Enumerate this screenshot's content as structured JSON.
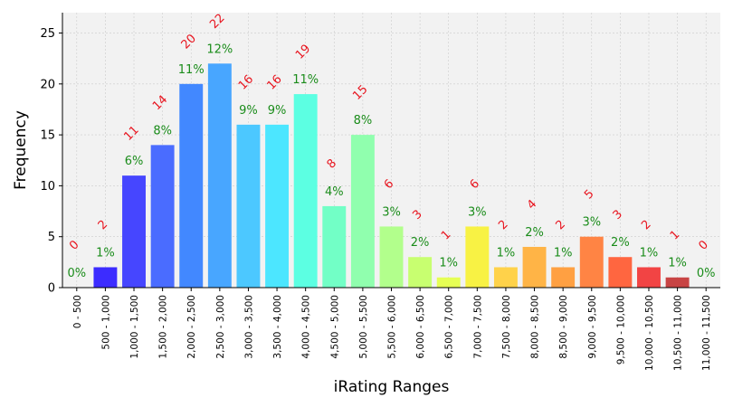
{
  "chart_data": {
    "type": "bar",
    "title": "",
    "xlabel": "iRating Ranges",
    "ylabel": "Frequency",
    "ylim": [
      0,
      27
    ],
    "yticks": [
      0,
      5,
      10,
      15,
      20,
      25
    ],
    "grid": true,
    "categories": [
      "0 - 500",
      "500 - 1,000",
      "1,000 - 1,500",
      "1,500 - 2,000",
      "2,000 - 2,500",
      "2,500 - 3,000",
      "3,000 - 3,500",
      "3,500 - 4,000",
      "4,000 - 4,500",
      "4,500 - 5,000",
      "5,000 - 5,500",
      "5,500 - 6,000",
      "6,000 - 6,500",
      "6,500 - 7,000",
      "7,000 - 7,500",
      "7,500 - 8,000",
      "8,000 - 8,500",
      "8,500 - 9,000",
      "9,000 - 9,500",
      "9,500 - 10,000",
      "10,000 - 10,500",
      "10,500 - 11,000",
      "11,000 - 11,500"
    ],
    "values": [
      0,
      2,
      11,
      14,
      20,
      22,
      16,
      16,
      19,
      8,
      15,
      6,
      3,
      1,
      6,
      2,
      4,
      2,
      5,
      3,
      2,
      1,
      0
    ],
    "count_labels": [
      "0",
      "2",
      "11",
      "14",
      "20",
      "22",
      "16",
      "16",
      "19",
      "8",
      "15",
      "6",
      "3",
      "1",
      "6",
      "2",
      "4",
      "2",
      "5",
      "3",
      "2",
      "1",
      "0"
    ],
    "percent_labels": [
      "0%",
      "1%",
      "6%",
      "8%",
      "11%",
      "12%",
      "9%",
      "9%",
      "11%",
      "4%",
      "8%",
      "3%",
      "2%",
      "1%",
      "3%",
      "1%",
      "2%",
      "1%",
      "3%",
      "2%",
      "1%",
      "1%",
      "0%"
    ],
    "bar_colors": [
      "#3a10ff",
      "#3c2cff",
      "#4646ff",
      "#4a6cff",
      "#4288ff",
      "#48a6ff",
      "#4cc8ff",
      "#4ce6ff",
      "#5cffe2",
      "#72ffc6",
      "#90ffae",
      "#b2ff8c",
      "#c8ff70",
      "#e6ff54",
      "#f8f244",
      "#ffd24a",
      "#ffb446",
      "#ffa042",
      "#ff8444",
      "#ff6640",
      "#f24444",
      "#c84444",
      "#a00000"
    ]
  }
}
